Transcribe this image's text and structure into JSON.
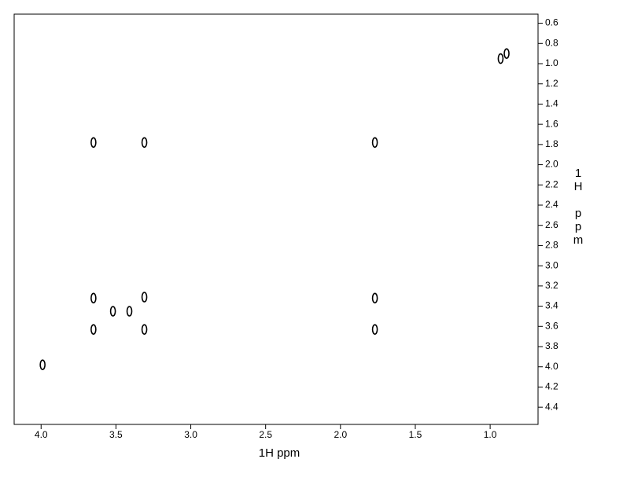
{
  "chart_data": {
    "type": "nmr2d",
    "x_label": "1H ppm",
    "y_label": "1H ppm",
    "xlim": [
      4.18,
      0.68
    ],
    "ylim": [
      0.51,
      4.57
    ],
    "xticks": [
      {
        "value": 4,
        "label": "4.0"
      },
      3.5,
      {
        "value": 3,
        "label": "3.0"
      },
      2.5,
      {
        "value": 2,
        "label": "2.0"
      },
      1.5,
      {
        "value": 1,
        "label": "1.0"
      }
    ],
    "yticks": [
      0.6,
      0.8,
      {
        "value": 1,
        "label": "1.0"
      },
      1.2,
      1.4,
      1.6,
      1.8,
      {
        "value": 2,
        "label": "2.0"
      },
      2.2,
      2.4,
      2.6,
      2.8,
      {
        "value": 3,
        "label": "3.0"
      },
      3.2,
      3.4,
      3.6,
      3.8,
      {
        "value": 4,
        "label": "4.0"
      },
      4.2,
      4.4
    ],
    "color": "#000000",
    "peaks": {
      "x": [
        3.65,
        3.31,
        1.77,
        3.65,
        3.31,
        1.77,
        3.52,
        3.41,
        3.65,
        3.31,
        1.77,
        3.99,
        0.93,
        0.89
      ],
      "y": [
        1.78,
        1.78,
        1.78,
        3.32,
        3.31,
        3.32,
        3.45,
        3.45,
        3.63,
        3.63,
        3.63,
        3.98,
        0.95,
        0.9
      ]
    }
  }
}
